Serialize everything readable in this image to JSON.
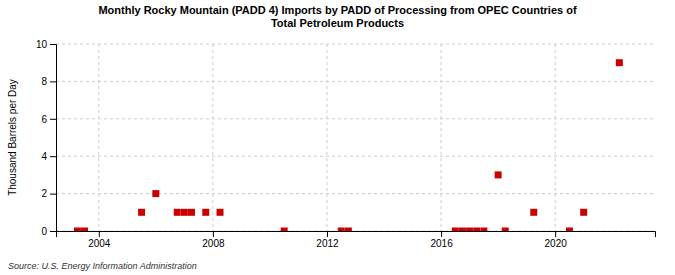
{
  "chart_data": {
    "type": "scatter",
    "title": "Monthly Rocky Mountain (PADD 4) Imports by PADD of Processing from OPEC Countries of\nTotal Petroleum Products",
    "ylabel": "Thousand Barrels per Day",
    "source": "Source: U.S. Energy Information Administration",
    "color": "#CC0000",
    "marker": "square",
    "grid": true,
    "xlim": [
      2002.5,
      2023.5
    ],
    "ylim": [
      0,
      10
    ],
    "xticks": [
      2004,
      2008,
      2012,
      2016,
      2020
    ],
    "yticks": [
      0,
      2,
      4,
      6,
      8,
      10
    ],
    "x": [
      2003.25,
      2003.5,
      2005.5,
      2006.0,
      2006.75,
      2007.0,
      2007.25,
      2007.75,
      2008.25,
      2010.5,
      2012.5,
      2012.75,
      2016.5,
      2016.75,
      2017.0,
      2017.25,
      2017.5,
      2018.0,
      2018.25,
      2019.25,
      2020.5,
      2021.0,
      2022.25
    ],
    "values": [
      0,
      0,
      1,
      2,
      1,
      1,
      1,
      1,
      1,
      0,
      0,
      0,
      0,
      0,
      0,
      0,
      0,
      3,
      0,
      1,
      0,
      1,
      9
    ]
  }
}
